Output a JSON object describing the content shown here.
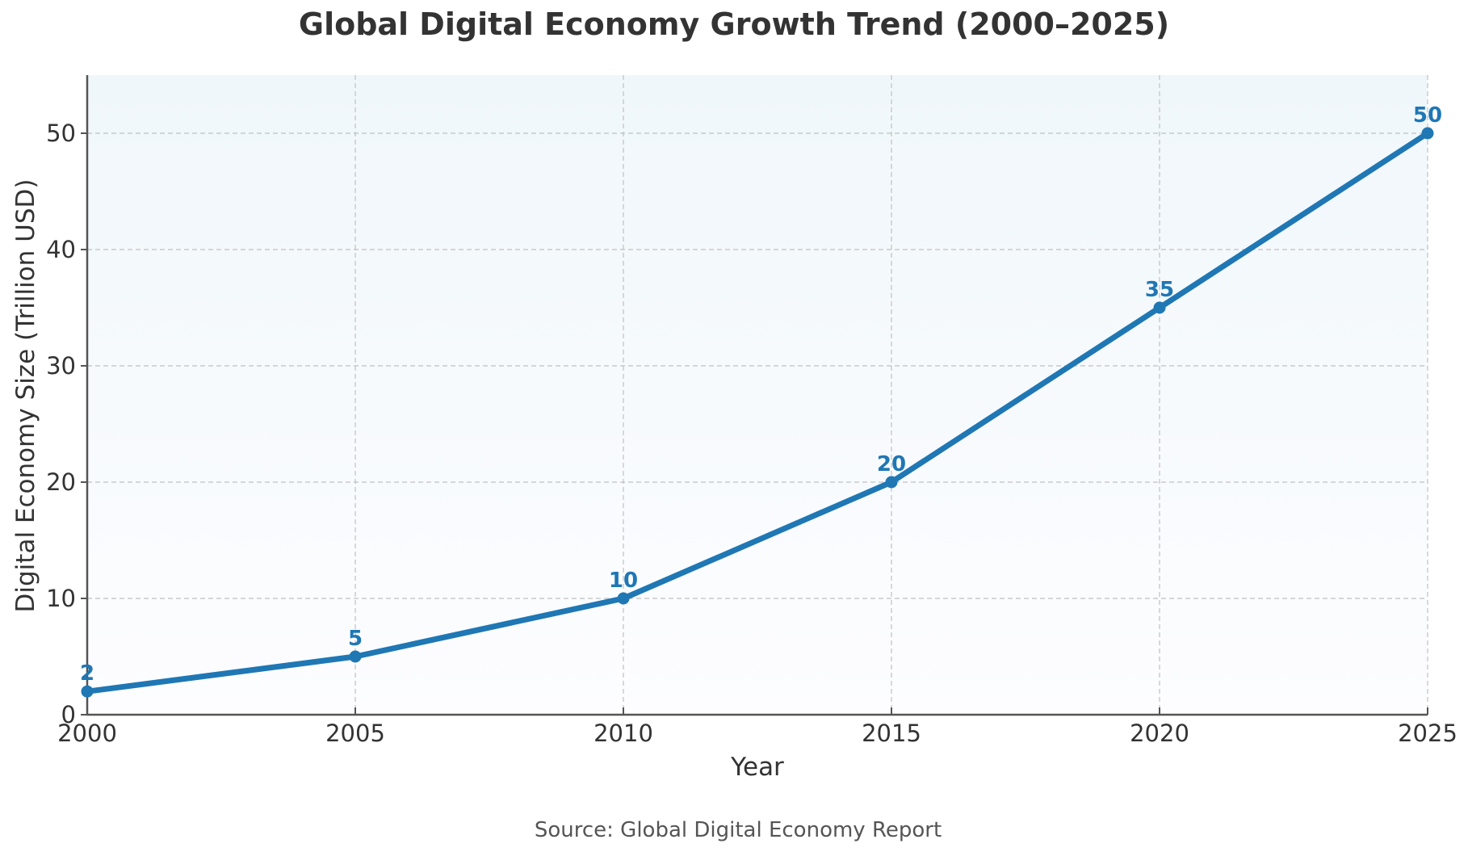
{
  "chart_data": {
    "type": "line",
    "title": "Global Digital Economy Growth Trend (2000–2025)",
    "xlabel": "Year",
    "ylabel": "Digital Economy Size (Trillion USD)",
    "source": "Source: Global Digital Economy Report",
    "x": [
      2000,
      2005,
      2010,
      2015,
      2020,
      2025
    ],
    "series": [
      {
        "name": "Digital Economy Size",
        "values": [
          2,
          5,
          10,
          20,
          35,
          50
        ],
        "color": "#1f77b4"
      }
    ],
    "data_labels": [
      "2",
      "5",
      "10",
      "20",
      "35",
      "50"
    ],
    "xlim": [
      2000,
      2025
    ],
    "ylim": [
      0,
      55
    ],
    "x_ticks": [
      "2000",
      "2005",
      "2010",
      "2015",
      "2020",
      "2025"
    ],
    "y_ticks": [
      "0",
      "10",
      "20",
      "30",
      "40",
      "50"
    ],
    "grid": true,
    "background_gradient": [
      "#f0f7fb",
      "#fdfdff"
    ],
    "axis_color": "#555555",
    "grid_color": "#c0c0c0"
  }
}
